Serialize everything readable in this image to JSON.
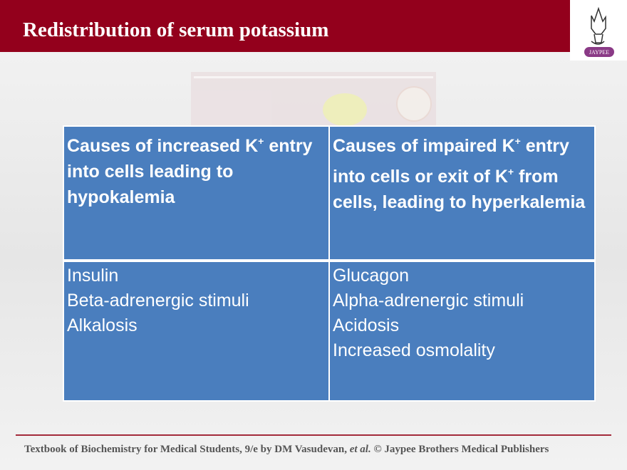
{
  "header": {
    "title": "Redistribution of serum potassium",
    "logo_text": "JAYPEE",
    "brand_color": "#93001c"
  },
  "table": {
    "columns": [
      {
        "heading": "Causes of increased K",
        "sup": "+",
        "heading_rest": "entry into cells leading to hypokalemia",
        "items": [
          "Insulin",
          "Beta-adrenergic stimuli",
          "Alkalosis"
        ]
      },
      {
        "heading": "Causes of impaired K",
        "sup": "+",
        "heading_mid": "entry into cells or exit of K",
        "sup2": "+",
        "heading_rest": "from cells, leading to hyperkalemia",
        "items": [
          "Glucagon",
          "Alpha-adrenergic stimuli",
          "Acidosis",
          "Increased osmolality"
        ]
      }
    ],
    "color": "#4a7ebe"
  },
  "footer": {
    "text_a": "Textbook of Biochemistry for Medical Students, 9/e by DM Vasudevan, ",
    "text_em": "et al.",
    "text_b": " © Jaypee Brothers Medical Publishers"
  }
}
